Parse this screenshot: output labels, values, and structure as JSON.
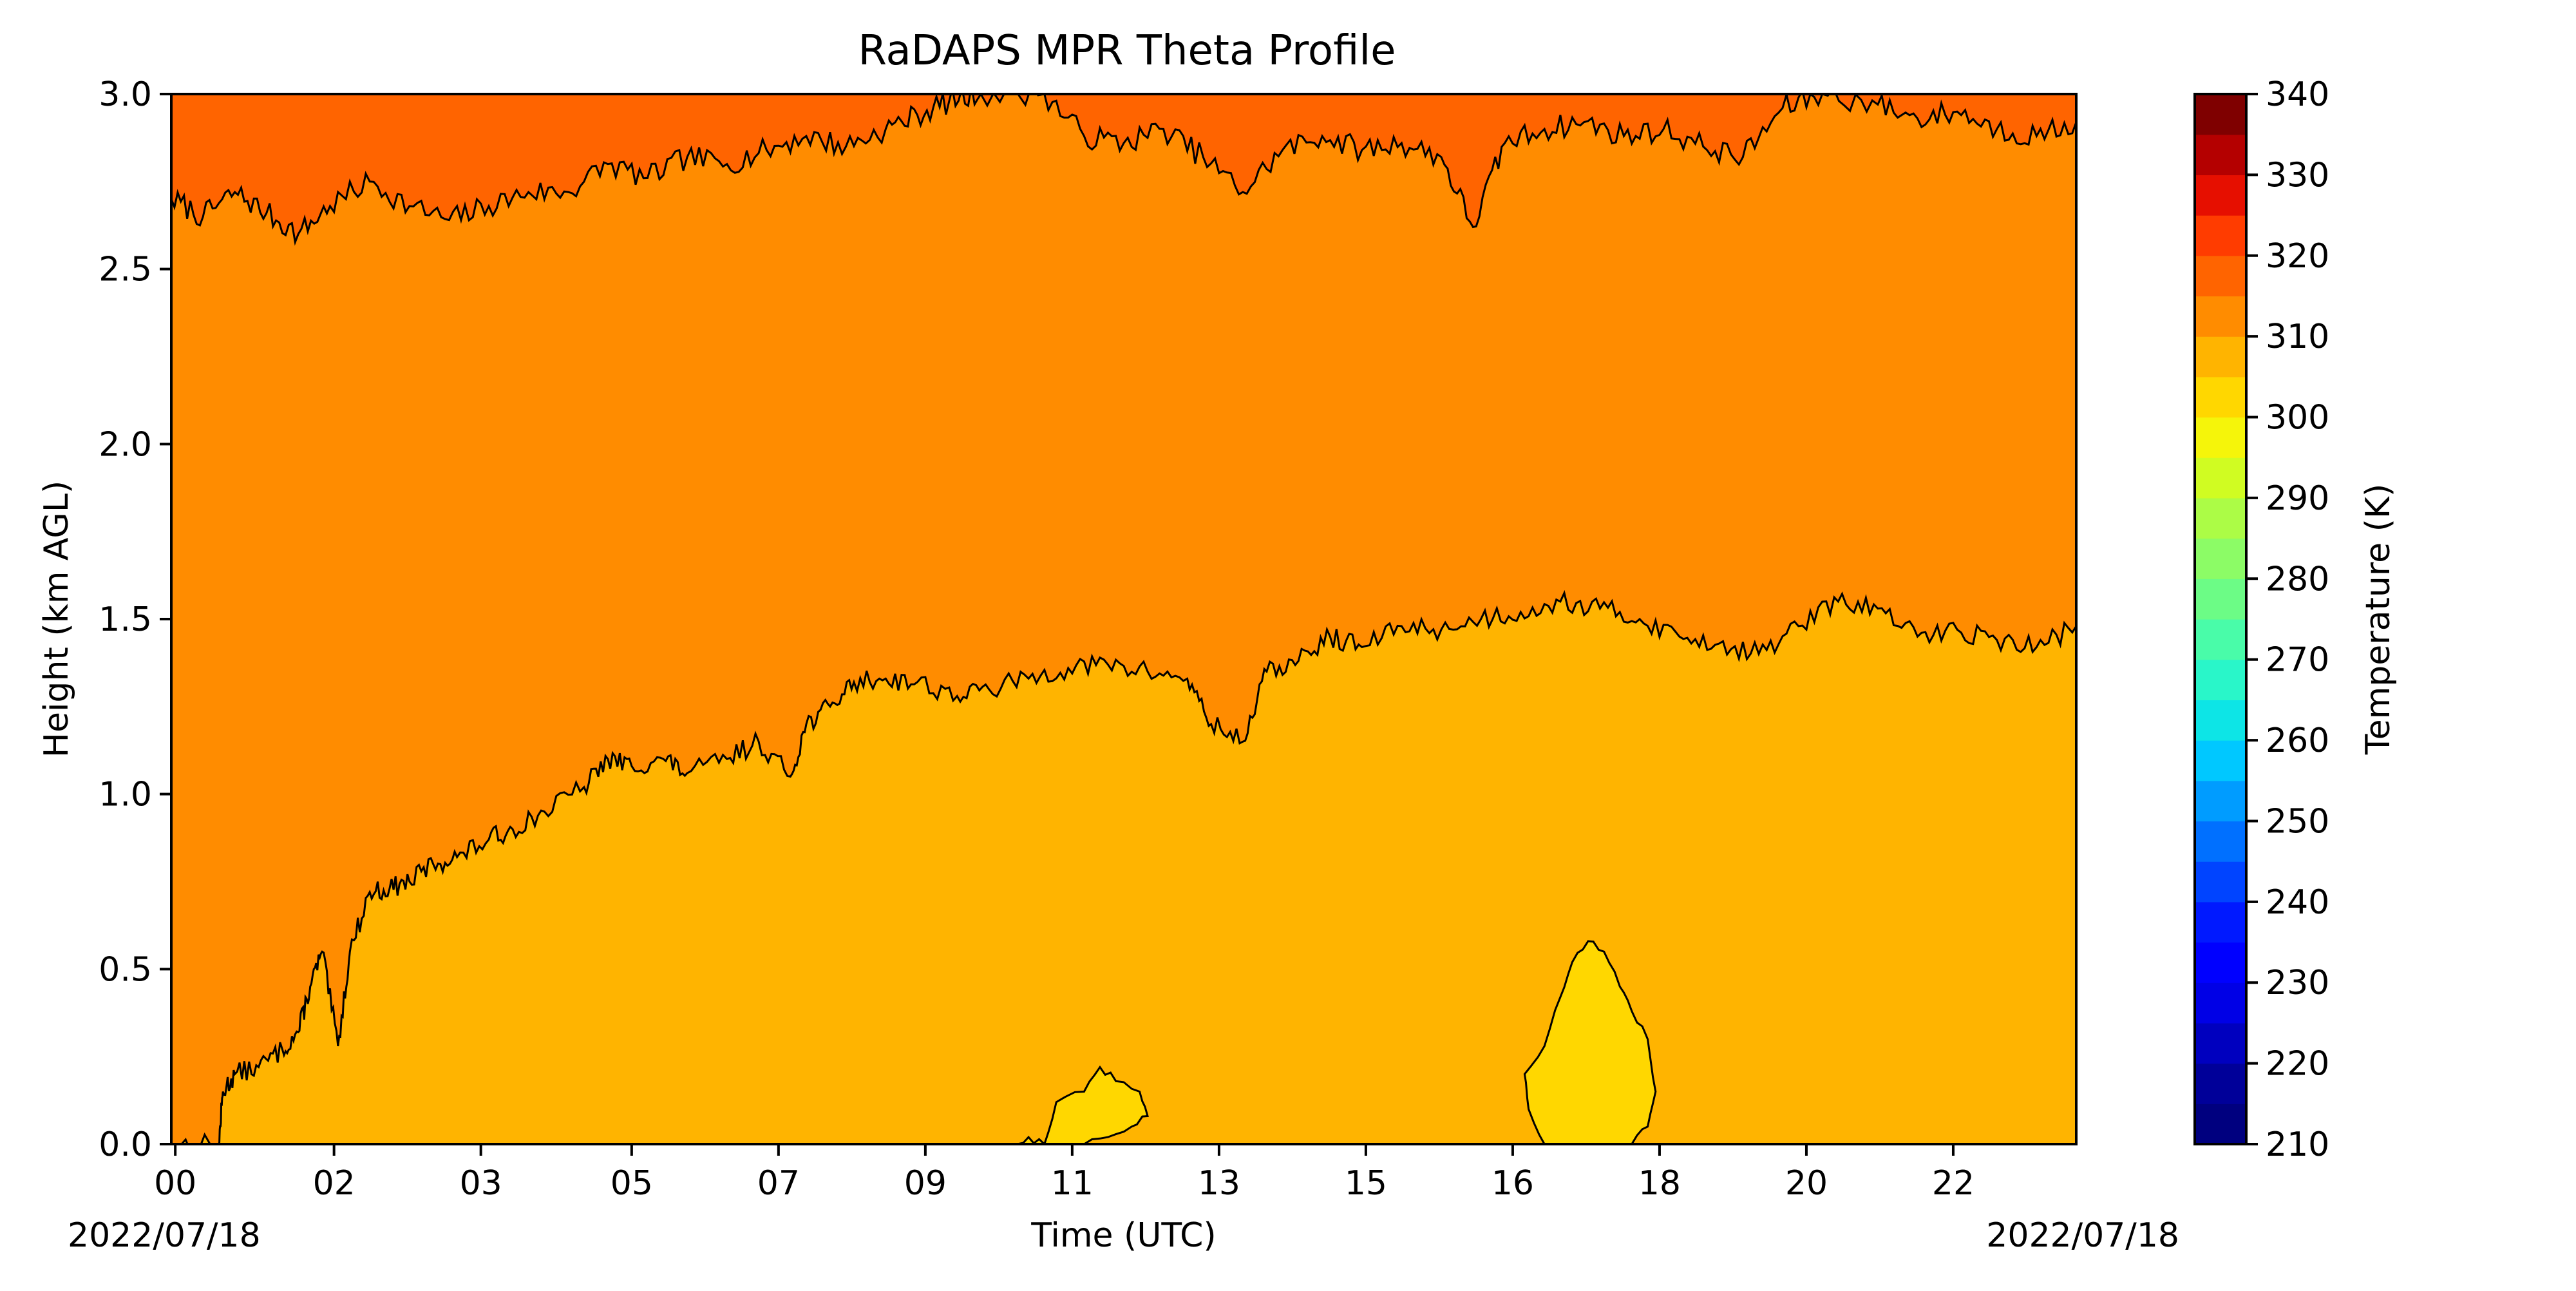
{
  "chart_data": {
    "type": "heatmap",
    "subtype": "filled-contour",
    "title": "RaDAPS MPR Theta Profile",
    "xlabel": "Time (UTC)",
    "ylabel": "Height (km AGL)",
    "x_tick_labels": [
      "00",
      "02",
      "03",
      "05",
      "07",
      "09",
      "11",
      "13",
      "15",
      "16",
      "18",
      "20",
      "22"
    ],
    "x_tick_hours": [
      0.05,
      2.05,
      3.9,
      5.8,
      7.65,
      9.5,
      11.35,
      13.2,
      15.05,
      16.9,
      18.75,
      20.6,
      22.45
    ],
    "x_range_hours": [
      0,
      24
    ],
    "start_date_label": "2022/07/18",
    "end_date_label": "2022/07/18",
    "y_ticks": [
      0.0,
      0.5,
      1.0,
      1.5,
      2.0,
      2.5,
      3.0
    ],
    "y_tick_labels": [
      "0.0",
      "0.5",
      "1.0",
      "1.5",
      "2.0",
      "2.5",
      "3.0"
    ],
    "ylim": [
      0,
      3
    ],
    "grid": false,
    "colorbar": {
      "label": "Temperature (K)",
      "range": [
        210,
        340
      ],
      "ticks": [
        210,
        220,
        230,
        240,
        250,
        260,
        270,
        280,
        290,
        300,
        310,
        320,
        330,
        340
      ],
      "bands": [
        {
          "from": 210,
          "to": 215,
          "color": "#00007f"
        },
        {
          "from": 215,
          "to": 220,
          "color": "#000099"
        },
        {
          "from": 220,
          "to": 225,
          "color": "#0000bf"
        },
        {
          "from": 225,
          "to": 230,
          "color": "#0000e6"
        },
        {
          "from": 230,
          "to": 235,
          "color": "#0000ff"
        },
        {
          "from": 235,
          "to": 240,
          "color": "#0019ff"
        },
        {
          "from": 240,
          "to": 245,
          "color": "#0044ff"
        },
        {
          "from": 245,
          "to": 250,
          "color": "#0070ff"
        },
        {
          "from": 250,
          "to": 255,
          "color": "#009cff"
        },
        {
          "from": 255,
          "to": 260,
          "color": "#00c8ff"
        },
        {
          "from": 260,
          "to": 265,
          "color": "#0de5e6"
        },
        {
          "from": 265,
          "to": 270,
          "color": "#29f6c9"
        },
        {
          "from": 270,
          "to": 275,
          "color": "#49fca9"
        },
        {
          "from": 275,
          "to": 280,
          "color": "#6cfc86"
        },
        {
          "from": 280,
          "to": 285,
          "color": "#8cfc66"
        },
        {
          "from": 285,
          "to": 290,
          "color": "#acfc46"
        },
        {
          "from": 290,
          "to": 295,
          "color": "#d0fc22"
        },
        {
          "from": 295,
          "to": 300,
          "color": "#f5f50a"
        },
        {
          "from": 300,
          "to": 305,
          "color": "#ffd700"
        },
        {
          "from": 305,
          "to": 310,
          "color": "#ffb400"
        },
        {
          "from": 310,
          "to": 315,
          "color": "#ff8c00"
        },
        {
          "from": 315,
          "to": 320,
          "color": "#ff6400"
        },
        {
          "from": 320,
          "to": 325,
          "color": "#ff3c00"
        },
        {
          "from": 325,
          "to": 330,
          "color": "#e60f00"
        },
        {
          "from": 330,
          "to": 335,
          "color": "#b40000"
        },
        {
          "from": 335,
          "to": 340,
          "color": "#7f0000"
        }
      ]
    },
    "contour_bands": [
      {
        "range_K": [
          305,
          310
        ],
        "color": "#ffb400",
        "region": "lower layer"
      },
      {
        "range_K": [
          310,
          315
        ],
        "color": "#ff8c00",
        "region": "middle layer"
      },
      {
        "range_K": [
          315,
          320
        ],
        "color": "#ff6400",
        "region": "upper layer"
      },
      {
        "range_K": [
          300,
          305
        ],
        "color": "#ffd700",
        "region": "surface pockets"
      }
    ],
    "boundary_310K": [
      [
        0.0,
        0.0
      ],
      [
        0.6,
        0.0
      ],
      [
        0.65,
        0.15
      ],
      [
        0.8,
        0.2
      ],
      [
        1.1,
        0.22
      ],
      [
        1.4,
        0.27
      ],
      [
        1.6,
        0.32
      ],
      [
        1.75,
        0.45
      ],
      [
        1.9,
        0.55
      ],
      [
        2.1,
        0.28
      ],
      [
        2.25,
        0.55
      ],
      [
        2.5,
        0.72
      ],
      [
        2.75,
        0.73
      ],
      [
        3.0,
        0.75
      ],
      [
        3.3,
        0.8
      ],
      [
        3.6,
        0.82
      ],
      [
        4.0,
        0.87
      ],
      [
        4.3,
        0.9
      ],
      [
        4.7,
        0.95
      ],
      [
        5.2,
        1.02
      ],
      [
        5.5,
        1.1
      ],
      [
        5.8,
        1.08
      ],
      [
        6.2,
        1.1
      ],
      [
        6.5,
        1.06
      ],
      [
        7.0,
        1.1
      ],
      [
        7.4,
        1.15
      ],
      [
        7.8,
        1.05
      ],
      [
        8.0,
        1.2
      ],
      [
        8.3,
        1.25
      ],
      [
        8.6,
        1.32
      ],
      [
        9.0,
        1.33
      ],
      [
        9.4,
        1.32
      ],
      [
        9.9,
        1.28
      ],
      [
        10.3,
        1.3
      ],
      [
        10.8,
        1.33
      ],
      [
        11.3,
        1.36
      ],
      [
        11.8,
        1.37
      ],
      [
        12.3,
        1.35
      ],
      [
        12.8,
        1.33
      ],
      [
        13.1,
        1.2
      ],
      [
        13.5,
        1.15
      ],
      [
        13.8,
        1.35
      ],
      [
        14.2,
        1.38
      ],
      [
        14.6,
        1.45
      ],
      [
        15.0,
        1.42
      ],
      [
        15.5,
        1.48
      ],
      [
        16.0,
        1.47
      ],
      [
        16.5,
        1.5
      ],
      [
        17.0,
        1.52
      ],
      [
        17.5,
        1.55
      ],
      [
        18.0,
        1.53
      ],
      [
        18.5,
        1.5
      ],
      [
        19.0,
        1.45
      ],
      [
        19.5,
        1.43
      ],
      [
        20.0,
        1.4
      ],
      [
        20.5,
        1.48
      ],
      [
        21.0,
        1.55
      ],
      [
        21.5,
        1.53
      ],
      [
        22.0,
        1.45
      ],
      [
        22.5,
        1.47
      ],
      [
        23.0,
        1.44
      ],
      [
        23.5,
        1.42
      ],
      [
        24.0,
        1.48
      ]
    ],
    "boundary_315K": [
      [
        0.0,
        2.7
      ],
      [
        0.4,
        2.65
      ],
      [
        0.8,
        2.72
      ],
      [
        1.2,
        2.66
      ],
      [
        1.6,
        2.6
      ],
      [
        2.0,
        2.68
      ],
      [
        2.5,
        2.75
      ],
      [
        3.0,
        2.68
      ],
      [
        3.5,
        2.64
      ],
      [
        4.0,
        2.68
      ],
      [
        4.5,
        2.72
      ],
      [
        5.0,
        2.72
      ],
      [
        5.5,
        2.8
      ],
      [
        6.0,
        2.76
      ],
      [
        6.5,
        2.82
      ],
      [
        7.0,
        2.8
      ],
      [
        7.5,
        2.84
      ],
      [
        8.0,
        2.88
      ],
      [
        8.5,
        2.85
      ],
      [
        9.0,
        2.9
      ],
      [
        9.4,
        2.94
      ],
      [
        9.8,
        2.98
      ],
      [
        10.2,
        3.0
      ],
      [
        11.0,
        3.0
      ],
      [
        11.5,
        2.88
      ],
      [
        12.0,
        2.86
      ],
      [
        12.5,
        2.9
      ],
      [
        13.0,
        2.82
      ],
      [
        13.5,
        2.72
      ],
      [
        14.0,
        2.84
      ],
      [
        14.5,
        2.88
      ],
      [
        15.0,
        2.84
      ],
      [
        15.5,
        2.86
      ],
      [
        16.0,
        2.82
      ],
      [
        16.4,
        2.62
      ],
      [
        16.8,
        2.86
      ],
      [
        17.3,
        2.9
      ],
      [
        17.8,
        2.92
      ],
      [
        18.3,
        2.88
      ],
      [
        18.8,
        2.9
      ],
      [
        19.3,
        2.85
      ],
      [
        19.8,
        2.82
      ],
      [
        20.3,
        2.96
      ],
      [
        20.8,
        3.0
      ],
      [
        21.5,
        2.97
      ],
      [
        22.0,
        2.93
      ],
      [
        22.5,
        2.95
      ],
      [
        23.0,
        2.9
      ],
      [
        23.5,
        2.88
      ],
      [
        24.0,
        2.92
      ]
    ],
    "pockets_305K": [
      [
        [
          10.6,
          0.0
        ],
        [
          10.8,
          0.02
        ],
        [
          11.0,
          0.0
        ]
      ],
      [
        [
          11.0,
          0.0
        ],
        [
          11.15,
          0.12
        ],
        [
          11.5,
          0.15
        ],
        [
          11.7,
          0.22
        ],
        [
          11.9,
          0.18
        ],
        [
          12.2,
          0.15
        ],
        [
          12.3,
          0.08
        ],
        [
          12.1,
          0.05
        ],
        [
          11.8,
          0.02
        ],
        [
          11.5,
          0.0
        ]
      ],
      [
        [
          17.3,
          0.0
        ],
        [
          17.1,
          0.1
        ],
        [
          17.05,
          0.2
        ],
        [
          17.3,
          0.28
        ],
        [
          17.5,
          0.42
        ],
        [
          17.65,
          0.52
        ],
        [
          17.85,
          0.58
        ],
        [
          18.05,
          0.55
        ],
        [
          18.25,
          0.45
        ],
        [
          18.4,
          0.38
        ],
        [
          18.6,
          0.3
        ],
        [
          18.7,
          0.15
        ],
        [
          18.6,
          0.05
        ],
        [
          18.4,
          0.0
        ]
      ]
    ]
  }
}
